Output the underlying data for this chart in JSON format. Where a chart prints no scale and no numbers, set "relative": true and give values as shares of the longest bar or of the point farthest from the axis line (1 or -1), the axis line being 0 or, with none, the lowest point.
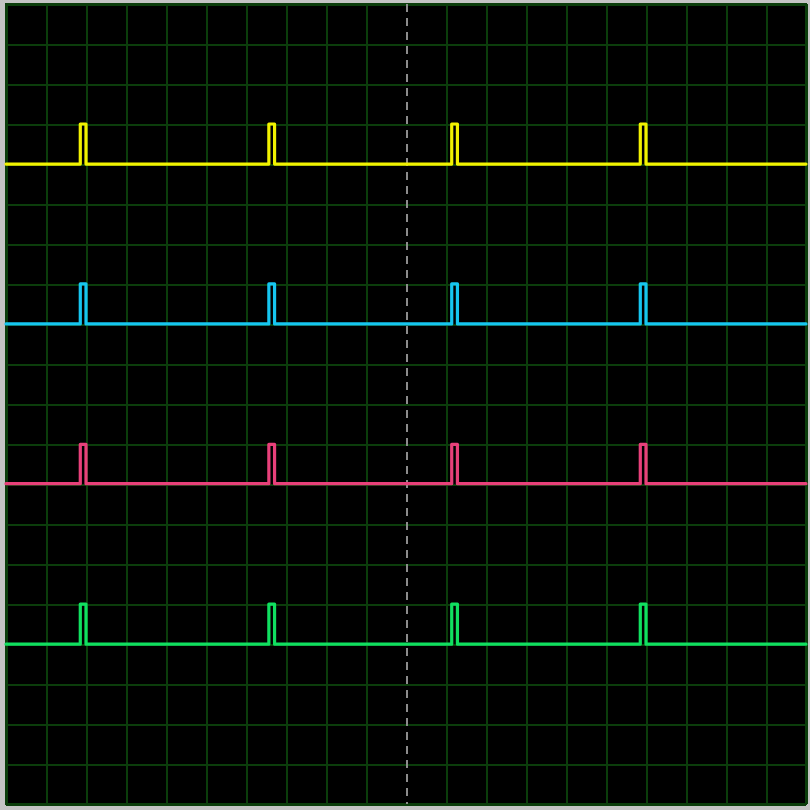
{
  "chart_data": {
    "type": "step",
    "relative": true,
    "grid": true,
    "tick_labels": false,
    "categories": [
      null,
      null,
      null,
      null,
      null,
      null,
      null,
      null,
      null,
      null,
      null,
      null,
      null,
      null,
      null,
      null,
      null,
      null,
      null,
      null,
      null,
      null,
      null,
      null,
      null,
      null,
      null,
      null,
      null,
      null,
      null,
      null,
      null,
      null,
      null,
      null,
      null,
      null,
      null,
      null,
      null,
      null,
      null,
      null,
      null,
      null,
      null,
      null,
      null,
      null,
      null,
      null,
      null,
      null,
      null,
      null,
      null,
      null,
      null,
      null,
      null,
      null,
      null,
      null,
      null,
      null,
      null,
      null,
      null,
      null,
      null,
      null,
      null,
      null,
      null,
      null,
      null,
      null,
      null,
      null,
      null,
      null,
      null,
      null,
      null,
      null,
      null,
      null,
      null,
      null,
      null,
      null,
      null,
      null,
      null,
      null,
      null,
      null,
      null,
      null,
      null,
      null,
      null,
      null,
      null,
      null,
      null,
      null,
      null,
      null,
      null,
      null,
      null,
      null,
      null,
      null,
      null,
      null,
      null,
      null,
      null,
      null,
      null,
      null,
      null,
      null,
      null,
      null,
      null,
      null,
      null,
      null,
      null,
      null,
      null,
      null,
      null,
      null,
      null,
      null,
      null
    ],
    "series": [
      {
        "color": "#f2f200",
        "values": [
          0.941,
          0.941,
          0.941,
          0.941,
          0.941,
          0.941,
          0.941,
          0.941,
          0.941,
          0.941,
          0.941,
          0.941,
          0.941,
          1,
          0.941,
          0.941,
          0.941,
          0.941,
          0.941,
          0.941,
          0.941,
          0.941,
          0.941,
          0.941,
          0.941,
          0.941,
          0.941,
          0.941,
          0.941,
          0.941,
          0.941,
          0.941,
          0.941,
          0.941,
          0.941,
          0.941,
          0.941,
          0.941,
          0.941,
          0.941,
          0.941,
          0.941,
          0.941,
          0.941,
          0.941,
          0.941,
          1,
          0.941,
          0.941,
          0.941,
          0.941,
          0.941,
          0.941,
          0.941,
          0.941,
          0.941,
          0.941,
          0.941,
          0.941,
          0.941,
          0.941,
          0.941,
          0.941,
          0.941,
          0.941,
          0.941,
          0.941,
          0.941,
          0.941,
          0.941,
          0.941,
          0.941,
          0.941,
          0.941,
          0.941,
          0.941,
          0.941,
          0.941,
          1,
          0.941,
          0.941,
          0.941,
          0.941,
          0.941,
          0.941,
          0.941,
          0.941,
          0.941,
          0.941,
          0.941,
          0.941,
          0.941,
          0.941,
          0.941,
          0.941,
          0.941,
          0.941,
          0.941,
          0.941,
          0.941,
          0.941,
          0.941,
          0.941,
          0.941,
          0.941,
          0.941,
          0.941,
          0.941,
          0.941,
          0.941,
          0.941,
          1,
          0.941,
          0.941,
          0.941,
          0.941,
          0.941,
          0.941,
          0.941,
          0.941,
          0.941,
          0.941,
          0.941,
          0.941,
          0.941,
          0.941,
          0.941,
          0.941,
          0.941,
          0.941,
          0.941,
          0.941,
          0.941,
          0.941,
          0.941,
          0.941,
          0.941,
          0.941,
          0.941,
          0.941,
          0.941
        ]
      },
      {
        "color": "#16c6f0",
        "values": [
          0.706,
          0.706,
          0.706,
          0.706,
          0.706,
          0.706,
          0.706,
          0.706,
          0.706,
          0.706,
          0.706,
          0.706,
          0.706,
          0.765,
          0.706,
          0.706,
          0.706,
          0.706,
          0.706,
          0.706,
          0.706,
          0.706,
          0.706,
          0.706,
          0.706,
          0.706,
          0.706,
          0.706,
          0.706,
          0.706,
          0.706,
          0.706,
          0.706,
          0.706,
          0.706,
          0.706,
          0.706,
          0.706,
          0.706,
          0.706,
          0.706,
          0.706,
          0.706,
          0.706,
          0.706,
          0.706,
          0.765,
          0.706,
          0.706,
          0.706,
          0.706,
          0.706,
          0.706,
          0.706,
          0.706,
          0.706,
          0.706,
          0.706,
          0.706,
          0.706,
          0.706,
          0.706,
          0.706,
          0.706,
          0.706,
          0.706,
          0.706,
          0.706,
          0.706,
          0.706,
          0.706,
          0.706,
          0.706,
          0.706,
          0.706,
          0.706,
          0.706,
          0.706,
          0.765,
          0.706,
          0.706,
          0.706,
          0.706,
          0.706,
          0.706,
          0.706,
          0.706,
          0.706,
          0.706,
          0.706,
          0.706,
          0.706,
          0.706,
          0.706,
          0.706,
          0.706,
          0.706,
          0.706,
          0.706,
          0.706,
          0.706,
          0.706,
          0.706,
          0.706,
          0.706,
          0.706,
          0.706,
          0.706,
          0.706,
          0.706,
          0.706,
          0.765,
          0.706,
          0.706,
          0.706,
          0.706,
          0.706,
          0.706,
          0.706,
          0.706,
          0.706,
          0.706,
          0.706,
          0.706,
          0.706,
          0.706,
          0.706,
          0.706,
          0.706,
          0.706,
          0.706,
          0.706,
          0.706,
          0.706,
          0.706,
          0.706,
          0.706,
          0.706,
          0.706,
          0.706,
          0.706
        ]
      },
      {
        "color": "#e8407a",
        "values": [
          0.471,
          0.471,
          0.471,
          0.471,
          0.471,
          0.471,
          0.471,
          0.471,
          0.471,
          0.471,
          0.471,
          0.471,
          0.471,
          0.529,
          0.471,
          0.471,
          0.471,
          0.471,
          0.471,
          0.471,
          0.471,
          0.471,
          0.471,
          0.471,
          0.471,
          0.471,
          0.471,
          0.471,
          0.471,
          0.471,
          0.471,
          0.471,
          0.471,
          0.471,
          0.471,
          0.471,
          0.471,
          0.471,
          0.471,
          0.471,
          0.471,
          0.471,
          0.471,
          0.471,
          0.471,
          0.471,
          0.529,
          0.471,
          0.471,
          0.471,
          0.471,
          0.471,
          0.471,
          0.471,
          0.471,
          0.471,
          0.471,
          0.471,
          0.471,
          0.471,
          0.471,
          0.471,
          0.471,
          0.471,
          0.471,
          0.471,
          0.471,
          0.471,
          0.471,
          0.471,
          0.471,
          0.471,
          0.471,
          0.471,
          0.471,
          0.471,
          0.471,
          0.471,
          0.529,
          0.471,
          0.471,
          0.471,
          0.471,
          0.471,
          0.471,
          0.471,
          0.471,
          0.471,
          0.471,
          0.471,
          0.471,
          0.471,
          0.471,
          0.471,
          0.471,
          0.471,
          0.471,
          0.471,
          0.471,
          0.471,
          0.471,
          0.471,
          0.471,
          0.471,
          0.471,
          0.471,
          0.471,
          0.471,
          0.471,
          0.471,
          0.471,
          0.529,
          0.471,
          0.471,
          0.471,
          0.471,
          0.471,
          0.471,
          0.471,
          0.471,
          0.471,
          0.471,
          0.471,
          0.471,
          0.471,
          0.471,
          0.471,
          0.471,
          0.471,
          0.471,
          0.471,
          0.471,
          0.471,
          0.471,
          0.471,
          0.471,
          0.471,
          0.471,
          0.471,
          0.471,
          0.471
        ]
      },
      {
        "color": "#10e060",
        "values": [
          0.235,
          0.235,
          0.235,
          0.235,
          0.235,
          0.235,
          0.235,
          0.235,
          0.235,
          0.235,
          0.235,
          0.235,
          0.235,
          0.294,
          0.235,
          0.235,
          0.235,
          0.235,
          0.235,
          0.235,
          0.235,
          0.235,
          0.235,
          0.235,
          0.235,
          0.235,
          0.235,
          0.235,
          0.235,
          0.235,
          0.235,
          0.235,
          0.235,
          0.235,
          0.235,
          0.235,
          0.235,
          0.235,
          0.235,
          0.235,
          0.235,
          0.235,
          0.235,
          0.235,
          0.235,
          0.235,
          0.294,
          0.235,
          0.235,
          0.235,
          0.235,
          0.235,
          0.235,
          0.235,
          0.235,
          0.235,
          0.235,
          0.235,
          0.235,
          0.235,
          0.235,
          0.235,
          0.235,
          0.235,
          0.235,
          0.235,
          0.235,
          0.235,
          0.235,
          0.235,
          0.235,
          0.235,
          0.235,
          0.235,
          0.235,
          0.235,
          0.235,
          0.235,
          0.294,
          0.235,
          0.235,
          0.235,
          0.235,
          0.235,
          0.235,
          0.235,
          0.235,
          0.235,
          0.235,
          0.235,
          0.235,
          0.235,
          0.235,
          0.235,
          0.235,
          0.235,
          0.235,
          0.235,
          0.235,
          0.235,
          0.235,
          0.235,
          0.235,
          0.235,
          0.235,
          0.235,
          0.235,
          0.235,
          0.235,
          0.235,
          0.235,
          0.294,
          0.235,
          0.235,
          0.235,
          0.235,
          0.235,
          0.235,
          0.235,
          0.235,
          0.235,
          0.235,
          0.235,
          0.235,
          0.235,
          0.235,
          0.235,
          0.235,
          0.235,
          0.235,
          0.235,
          0.235,
          0.235,
          0.235,
          0.235,
          0.235,
          0.235,
          0.235,
          0.235,
          0.235,
          0.235
        ]
      }
    ]
  }
}
